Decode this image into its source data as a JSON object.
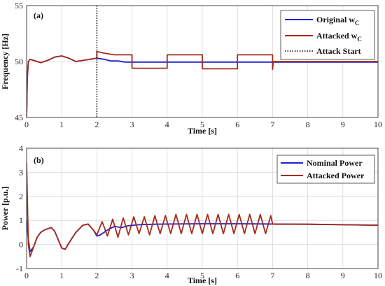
{
  "chart_data": [
    {
      "type": "line",
      "panel_label": "(a)",
      "xlabel": "Time [s]",
      "ylabel": "Frequency [Hz]",
      "xlim": [
        0,
        10
      ],
      "ylim": [
        45,
        55
      ],
      "xticks": [
        0,
        1,
        2,
        3,
        4,
        5,
        6,
        7,
        8,
        9,
        10
      ],
      "yticks": [
        45,
        50,
        55
      ],
      "grid": true,
      "legend_position": "top-right",
      "series": [
        {
          "name": "Original w",
          "name_sub": "C",
          "color": "#1f1fd0",
          "style": "solid",
          "x": [
            0,
            0.02,
            0.05,
            0.1,
            0.2,
            0.4,
            0.6,
            0.8,
            1.0,
            1.2,
            1.4,
            1.6,
            1.8,
            2.0,
            2.2,
            2.4,
            2.6,
            2.8,
            3.0,
            3.5,
            4.0,
            5.0,
            6.0,
            7.0,
            8.0,
            10.0
          ],
          "y": [
            45,
            48.5,
            50.0,
            50.2,
            50.1,
            49.9,
            50.1,
            50.4,
            50.5,
            50.3,
            50.0,
            50.1,
            50.2,
            50.3,
            50.2,
            50.05,
            50.05,
            49.95,
            49.95,
            49.95,
            49.95,
            49.95,
            49.95,
            49.95,
            49.95,
            49.95
          ]
        },
        {
          "name": "Attacked w",
          "name_sub": "C",
          "color": "#a52a1a",
          "style": "solid",
          "x": [
            0,
            0.02,
            0.05,
            0.1,
            0.2,
            0.4,
            0.6,
            0.8,
            1.0,
            1.2,
            1.4,
            1.6,
            1.8,
            2.0,
            2.0,
            2.2,
            2.5,
            3.0,
            3.0,
            4.0,
            4.0,
            5.0,
            5.0,
            6.0,
            6.0,
            7.0,
            7.0,
            7.02,
            8.0,
            10.0
          ],
          "y": [
            45,
            48.5,
            50.0,
            50.2,
            50.1,
            49.9,
            50.1,
            50.4,
            50.5,
            50.3,
            50.0,
            50.1,
            50.2,
            50.3,
            50.9,
            50.75,
            50.6,
            50.6,
            49.4,
            49.4,
            50.6,
            50.6,
            49.35,
            49.35,
            50.6,
            50.6,
            49.3,
            50.0,
            50.0,
            50.0
          ]
        },
        {
          "name": "Attack Start",
          "color": "#000000",
          "style": "dotted",
          "vertical_x": 2
        }
      ]
    },
    {
      "type": "line",
      "panel_label": "(b)",
      "xlabel": "Time [s]",
      "ylabel": "Power [p.u.]",
      "xlim": [
        0,
        10
      ],
      "ylim": [
        -1,
        4
      ],
      "xticks": [
        0,
        1,
        2,
        3,
        4,
        5,
        6,
        7,
        8,
        9,
        10
      ],
      "yticks": [
        -1,
        0,
        1,
        2,
        3,
        4
      ],
      "grid": true,
      "legend_position": "top-right",
      "series": [
        {
          "name": "Nominal Power",
          "color": "#1f1fd0",
          "style": "solid",
          "x": [
            0,
            0.05,
            0.1,
            0.2,
            0.3,
            0.4,
            0.5,
            0.7,
            0.8,
            0.9,
            1.0,
            1.1,
            1.2,
            1.4,
            1.6,
            1.75,
            1.9,
            2.0,
            2.1,
            2.3,
            2.5,
            2.7,
            2.9,
            3.2,
            3.6,
            4.0,
            5.0,
            6.0,
            7.0,
            8.0,
            10.0
          ],
          "y": [
            1.0,
            0.2,
            -0.3,
            -0.1,
            0.3,
            0.5,
            0.6,
            0.7,
            0.55,
            0.2,
            -0.15,
            -0.2,
            0.05,
            0.5,
            0.8,
            0.85,
            0.6,
            0.35,
            0.4,
            0.6,
            0.75,
            0.7,
            0.78,
            0.82,
            0.84,
            0.85,
            0.86,
            0.86,
            0.85,
            0.84,
            0.8
          ]
        },
        {
          "name": "Attacked Power",
          "color": "#a52a1a",
          "style": "solid",
          "x": [
            0,
            0.05,
            0.1,
            0.2,
            0.3,
            0.4,
            0.5,
            0.7,
            0.8,
            0.9,
            1.0,
            1.1,
            1.2,
            1.4,
            1.6,
            1.75,
            1.9,
            2.0,
            2.15,
            2.3,
            2.45,
            2.6,
            2.75,
            2.9,
            3.05,
            3.2,
            3.35,
            3.5,
            3.65,
            3.8,
            3.95,
            4.1,
            4.25,
            4.4,
            4.55,
            4.7,
            4.85,
            5.0,
            5.15,
            5.3,
            5.45,
            5.6,
            5.75,
            5.9,
            6.05,
            6.2,
            6.35,
            6.5,
            6.65,
            6.8,
            6.95,
            7.0,
            7.1,
            8.0,
            10.0
          ],
          "y": [
            3.4,
            0.0,
            -0.5,
            -0.1,
            0.3,
            0.5,
            0.6,
            0.7,
            0.55,
            0.2,
            -0.15,
            -0.2,
            0.05,
            0.5,
            0.8,
            0.85,
            0.6,
            0.4,
            0.95,
            0.35,
            1.05,
            0.3,
            1.1,
            0.4,
            1.15,
            0.45,
            1.15,
            0.4,
            1.2,
            0.45,
            1.2,
            0.45,
            1.25,
            0.45,
            1.25,
            0.45,
            1.25,
            0.45,
            1.25,
            0.45,
            1.25,
            0.45,
            1.25,
            0.45,
            1.25,
            0.45,
            1.25,
            0.45,
            1.25,
            0.45,
            1.2,
            0.85,
            0.84,
            0.84,
            0.8
          ]
        }
      ]
    }
  ]
}
